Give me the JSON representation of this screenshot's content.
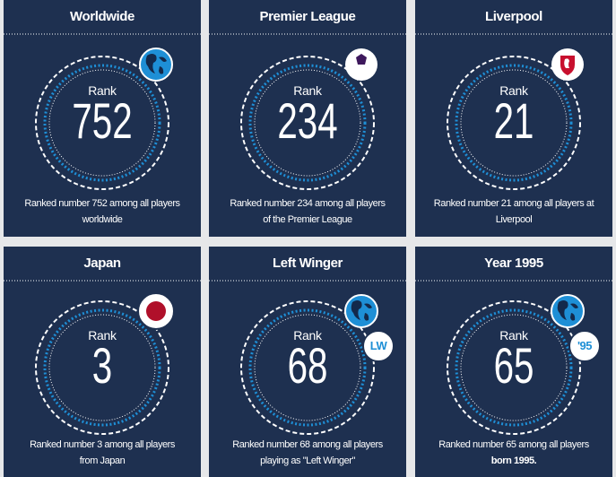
{
  "cards": [
    {
      "title": "Worldwide",
      "rank_label": "Rank",
      "rank": 752,
      "description": [
        {
          "text": "Ranked number 752 among all players worldwide"
        }
      ]
    },
    {
      "title": "Premier League",
      "rank_label": "Rank",
      "rank": 234,
      "description": [
        {
          "text": "Ranked number 234 among all players of the Premier League"
        }
      ]
    },
    {
      "title": "Liverpool",
      "rank_label": "Rank",
      "rank": 21,
      "description": [
        {
          "text": "Ranked number 21 among all players at Liverpool"
        }
      ]
    },
    {
      "title": "Japan",
      "rank_label": "Rank",
      "rank": 3,
      "description": [
        {
          "text": "Ranked number 3 among all players from Japan"
        }
      ]
    },
    {
      "title": "Left Winger",
      "rank_label": "Rank",
      "rank": 68,
      "badge": "LW",
      "description": [
        {
          "text": "Ranked number 68 among all players playing as \"Left Winger\""
        }
      ]
    },
    {
      "title": "Year 1995",
      "rank_label": "Rank",
      "rank": 65,
      "badge": "'95",
      "description": [
        {
          "text": "Ranked number 65 among all players "
        },
        {
          "text": "born 1995.",
          "bold": true
        }
      ]
    }
  ]
}
